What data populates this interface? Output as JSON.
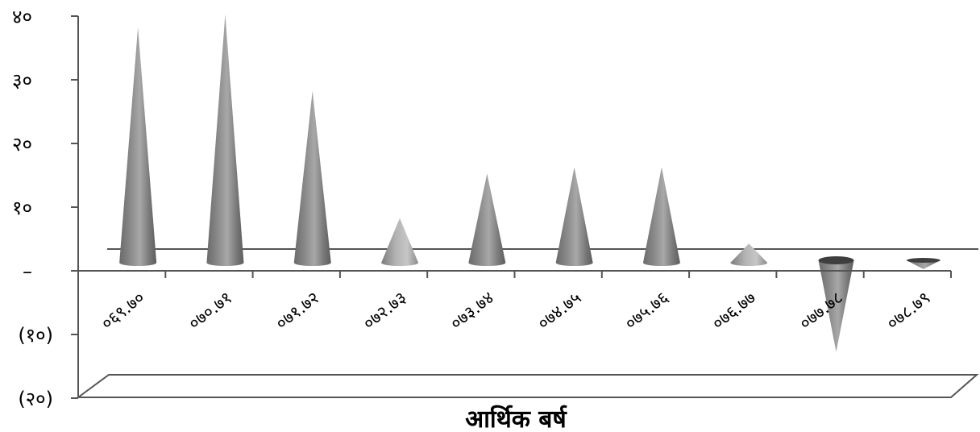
{
  "chart_data": {
    "type": "bar",
    "style": "3d-cone",
    "categories": [
      "०६९.७०",
      "०७०.७१",
      "०७१.७२",
      "०७२.७३",
      "०७३.७४",
      "०७४.७५",
      "०७५.७६",
      "०७६.७७",
      "०७७.७८",
      "०७८.७९"
    ],
    "series": [
      {
        "values": [
          37,
          39,
          27,
          7,
          14,
          15,
          15,
          3,
          -14,
          -1
        ]
      }
    ],
    "xlabel": "आर्थिक बर्ष",
    "ylabel": "",
    "ylim": [
      -20,
      40
    ],
    "yticks": [
      {
        "value": 40,
        "label": "४०"
      },
      {
        "value": 30,
        "label": "३०"
      },
      {
        "value": 20,
        "label": "२०"
      },
      {
        "value": 10,
        "label": "१०"
      },
      {
        "value": 0,
        "label": "–"
      },
      {
        "value": -10,
        "label": "(१०)"
      },
      {
        "value": -20,
        "label": "(२०)"
      }
    ],
    "grid": false,
    "legend": "none",
    "colors": {
      "cone_dark": "#5a5a5a",
      "cone_light": "#c8c8c8",
      "axis": "#404040"
    }
  }
}
